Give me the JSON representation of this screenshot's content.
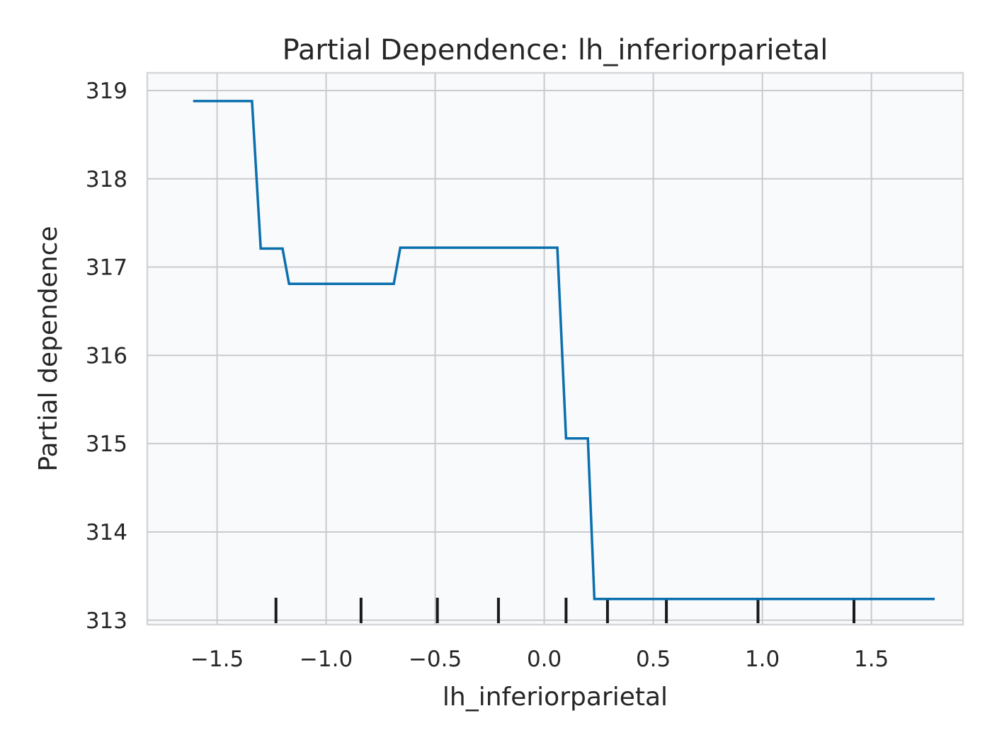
{
  "chart_data": {
    "type": "line",
    "title": "Partial Dependence: lh_inferiorparietal",
    "xlabel": "lh_inferiorparietal",
    "ylabel": "Partial dependence",
    "xlim": [
      -1.82,
      1.92
    ],
    "ylim": [
      312.95,
      319.2
    ],
    "xticks": [
      -1.5,
      -1.0,
      -0.5,
      0.0,
      0.5,
      1.0,
      1.5
    ],
    "xtick_labels": [
      "−1.5",
      "−1.0",
      "−0.5",
      "0.0",
      "0.5",
      "1.0",
      "1.5"
    ],
    "yticks": [
      313,
      314,
      315,
      316,
      317,
      318,
      319
    ],
    "ytick_labels": [
      "313",
      "314",
      "315",
      "316",
      "317",
      "318",
      "319"
    ],
    "grid": true,
    "series": [
      {
        "color": "#0a6fad",
        "x": [
          -1.61,
          -1.34,
          -1.3,
          -1.2,
          -1.17,
          -0.69,
          -0.66,
          0.06,
          0.1,
          0.2,
          0.23,
          1.79
        ],
        "y": [
          318.88,
          318.88,
          317.21,
          317.21,
          316.81,
          316.81,
          317.22,
          317.22,
          315.06,
          315.06,
          313.24,
          313.24
        ]
      }
    ],
    "rug": [
      -1.23,
      -0.84,
      -0.49,
      -0.21,
      0.1,
      0.29,
      0.56,
      0.98,
      1.42
    ]
  }
}
